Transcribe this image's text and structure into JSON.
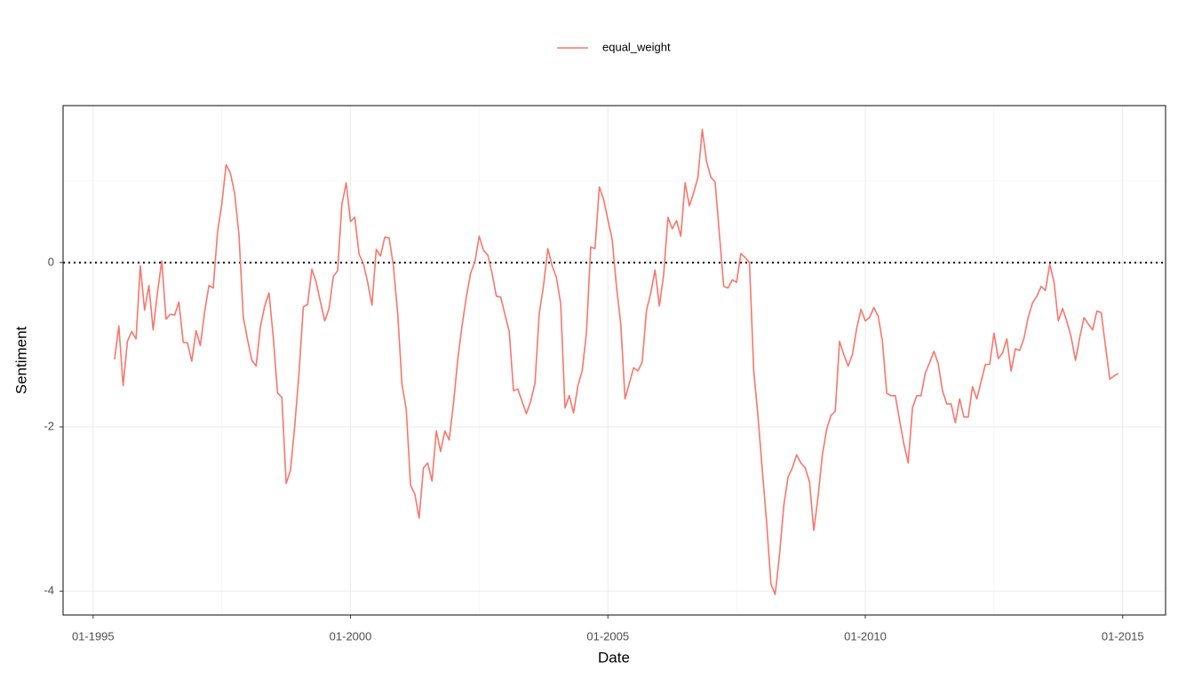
{
  "chart_data": {
    "type": "line",
    "x_label": "Date",
    "y_label": "Sentiment",
    "x": [
      "06-1995",
      "07-1995",
      "08-1995",
      "09-1995",
      "10-1995",
      "11-1995",
      "12-1995",
      "01-1996",
      "02-1996",
      "03-1996",
      "04-1996",
      "05-1996",
      "06-1996",
      "07-1996",
      "08-1996",
      "09-1996",
      "10-1996",
      "11-1996",
      "12-1996",
      "01-1997",
      "02-1997",
      "03-1997",
      "04-1997",
      "05-1997",
      "06-1997",
      "07-1997",
      "08-1997",
      "09-1997",
      "10-1997",
      "11-1997",
      "12-1997",
      "01-1998",
      "02-1998",
      "03-1998",
      "04-1998",
      "05-1998",
      "06-1998",
      "07-1998",
      "08-1998",
      "09-1998",
      "10-1998",
      "11-1998",
      "12-1998",
      "01-1999",
      "02-1999",
      "03-1999",
      "04-1999",
      "05-1999",
      "06-1999",
      "07-1999",
      "08-1999",
      "09-1999",
      "10-1999",
      "11-1999",
      "12-1999",
      "01-2000",
      "02-2000",
      "03-2000",
      "04-2000",
      "05-2000",
      "06-2000",
      "07-2000",
      "08-2000",
      "09-2000",
      "10-2000",
      "11-2000",
      "12-2000",
      "01-2001",
      "02-2001",
      "03-2001",
      "04-2001",
      "05-2001",
      "06-2001",
      "07-2001",
      "08-2001",
      "09-2001",
      "10-2001",
      "11-2001",
      "12-2001",
      "01-2002",
      "02-2002",
      "03-2002",
      "04-2002",
      "05-2002",
      "06-2002",
      "07-2002",
      "08-2002",
      "09-2002",
      "10-2002",
      "11-2002",
      "12-2002",
      "01-2003",
      "02-2003",
      "03-2003",
      "04-2003",
      "05-2003",
      "06-2003",
      "07-2003",
      "08-2003",
      "09-2003",
      "10-2003",
      "11-2003",
      "12-2003",
      "01-2004",
      "02-2004",
      "03-2004",
      "04-2004",
      "05-2004",
      "06-2004",
      "07-2004",
      "08-2004",
      "09-2004",
      "10-2004",
      "11-2004",
      "12-2004",
      "01-2005",
      "02-2005",
      "03-2005",
      "04-2005",
      "05-2005",
      "06-2005",
      "07-2005",
      "08-2005",
      "09-2005",
      "10-2005",
      "11-2005",
      "12-2005",
      "01-2006",
      "02-2006",
      "03-2006",
      "04-2006",
      "05-2006",
      "06-2006",
      "07-2006",
      "08-2006",
      "09-2006",
      "10-2006",
      "11-2006",
      "12-2006",
      "01-2007",
      "02-2007",
      "03-2007",
      "04-2007",
      "05-2007",
      "06-2007",
      "07-2007",
      "08-2007",
      "09-2007",
      "10-2007",
      "11-2007",
      "12-2007",
      "01-2008",
      "02-2008",
      "03-2008",
      "04-2008",
      "05-2008",
      "06-2008",
      "07-2008",
      "08-2008",
      "09-2008",
      "10-2008",
      "11-2008",
      "12-2008",
      "01-2009",
      "02-2009",
      "03-2009",
      "04-2009",
      "05-2009",
      "06-2009",
      "07-2009",
      "08-2009",
      "09-2009",
      "10-2009",
      "11-2009",
      "12-2009",
      "01-2010",
      "02-2010",
      "03-2010",
      "04-2010",
      "05-2010",
      "06-2010",
      "07-2010",
      "08-2010",
      "09-2010",
      "10-2010",
      "11-2010",
      "12-2010",
      "01-2011",
      "02-2011",
      "03-2011",
      "04-2011",
      "05-2011",
      "06-2011",
      "07-2011",
      "08-2011",
      "09-2011",
      "10-2011",
      "11-2011",
      "12-2011",
      "01-2012",
      "02-2012",
      "03-2012",
      "04-2012",
      "05-2012",
      "06-2012",
      "07-2012",
      "08-2012",
      "09-2012",
      "10-2012",
      "11-2012",
      "12-2012",
      "01-2013",
      "02-2013",
      "03-2013",
      "04-2013",
      "05-2013",
      "06-2013",
      "07-2013",
      "08-2013",
      "09-2013",
      "10-2013",
      "11-2013",
      "12-2013",
      "01-2014",
      "02-2014",
      "03-2014",
      "04-2014",
      "05-2014",
      "06-2014",
      "07-2014",
      "08-2014",
      "09-2014",
      "10-2014",
      "11-2014",
      "12-2014"
    ],
    "series": [
      {
        "name": "equal_weight",
        "color": "#F8766D",
        "values": [
          -1.18,
          -0.77,
          -1.5,
          -0.96,
          -0.84,
          -0.93,
          -0.04,
          -0.58,
          -0.28,
          -0.82,
          -0.37,
          0.02,
          -0.69,
          -0.63,
          -0.64,
          -0.48,
          -0.97,
          -0.98,
          -1.2,
          -0.83,
          -1.01,
          -0.6,
          -0.28,
          -0.31,
          0.37,
          0.71,
          1.19,
          1.09,
          0.84,
          0.34,
          -0.66,
          -0.94,
          -1.19,
          -1.26,
          -0.78,
          -0.53,
          -0.37,
          -0.91,
          -1.59,
          -1.64,
          -2.69,
          -2.53,
          -1.99,
          -1.34,
          -0.54,
          -0.51,
          -0.08,
          -0.24,
          -0.48,
          -0.71,
          -0.56,
          -0.17,
          -0.1,
          0.71,
          0.97,
          0.5,
          0.55,
          0.1,
          -0.01,
          -0.24,
          -0.52,
          0.16,
          0.08,
          0.31,
          0.3,
          -0.04,
          -0.62,
          -1.48,
          -1.79,
          -2.71,
          -2.82,
          -3.11,
          -2.5,
          -2.44,
          -2.66,
          -2.05,
          -2.3,
          -2.05,
          -2.16,
          -1.72,
          -1.18,
          -0.77,
          -0.42,
          -0.13,
          0.01,
          0.32,
          0.15,
          0.09,
          -0.13,
          -0.41,
          -0.42,
          -0.63,
          -0.84,
          -1.56,
          -1.54,
          -1.69,
          -1.84,
          -1.69,
          -1.47,
          -0.62,
          -0.28,
          0.17,
          -0.04,
          -0.18,
          -0.5,
          -1.77,
          -1.62,
          -1.83,
          -1.5,
          -1.32,
          -0.86,
          0.19,
          0.17,
          0.92,
          0.77,
          0.52,
          0.28,
          -0.29,
          -0.75,
          -1.66,
          -1.47,
          -1.28,
          -1.32,
          -1.21,
          -0.58,
          -0.37,
          -0.09,
          -0.53,
          -0.15,
          0.55,
          0.41,
          0.51,
          0.32,
          0.97,
          0.69,
          0.85,
          1.04,
          1.62,
          1.23,
          1.04,
          0.98,
          0.34,
          -0.29,
          -0.31,
          -0.21,
          -0.24,
          0.11,
          0.06,
          0.0,
          -1.32,
          -1.88,
          -2.53,
          -3.16,
          -3.91,
          -4.04,
          -3.56,
          -2.96,
          -2.61,
          -2.5,
          -2.34,
          -2.44,
          -2.5,
          -2.67,
          -3.26,
          -2.85,
          -2.34,
          -2.03,
          -1.86,
          -1.81,
          -0.96,
          -1.12,
          -1.26,
          -1.12,
          -0.8,
          -0.57,
          -0.71,
          -0.67,
          -0.55,
          -0.65,
          -0.96,
          -1.59,
          -1.62,
          -1.62,
          -1.92,
          -2.21,
          -2.44,
          -1.77,
          -1.62,
          -1.62,
          -1.34,
          -1.22,
          -1.08,
          -1.23,
          -1.56,
          -1.72,
          -1.72,
          -1.95,
          -1.66,
          -1.88,
          -1.88,
          -1.51,
          -1.66,
          -1.45,
          -1.24,
          -1.24,
          -0.86,
          -1.17,
          -1.1,
          -0.93,
          -1.32,
          -1.05,
          -1.07,
          -0.92,
          -0.66,
          -0.49,
          -0.41,
          -0.29,
          -0.34,
          -0.02,
          -0.24,
          -0.71,
          -0.56,
          -0.72,
          -0.91,
          -1.19,
          -0.91,
          -0.67,
          -0.75,
          -0.82,
          -0.59,
          -0.61,
          -1.02,
          -1.42,
          -1.38,
          -1.35
        ]
      }
    ],
    "xlim": [
      "06-1994",
      "11-2015"
    ],
    "xticks": [
      "01-1995",
      "01-2000",
      "01-2005",
      "01-2010",
      "01-2015"
    ],
    "ylim": [
      -4.29,
      1.91
    ],
    "yticks": [
      -4,
      -2,
      0
    ],
    "hline": 0,
    "grid": true,
    "legend": "top"
  }
}
